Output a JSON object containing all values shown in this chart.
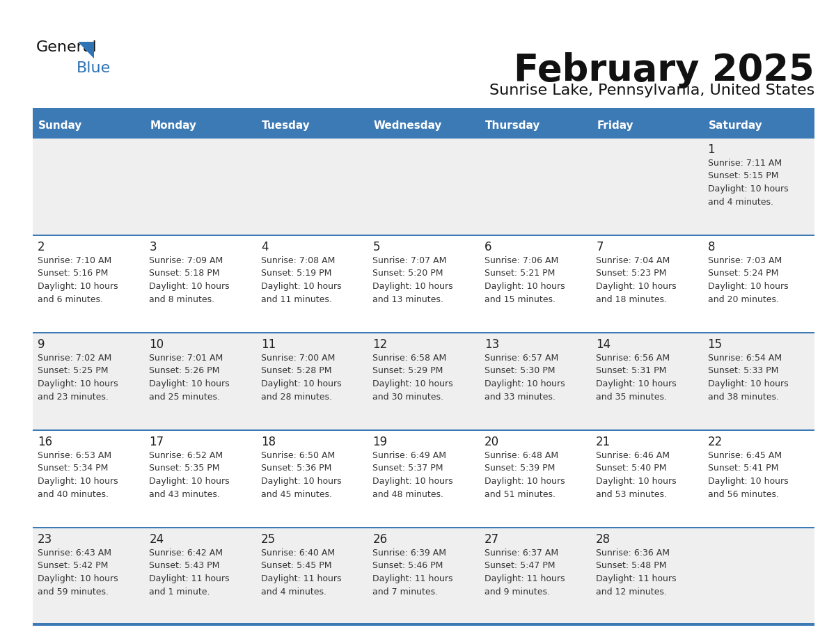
{
  "title": "February 2025",
  "subtitle": "Sunrise Lake, Pennsylvania, United States",
  "days_of_week": [
    "Sunday",
    "Monday",
    "Tuesday",
    "Wednesday",
    "Thursday",
    "Friday",
    "Saturday"
  ],
  "header_bg": "#3C7AB5",
  "header_text": "#FFFFFF",
  "row_bg_odd": "#EFEFEF",
  "row_bg_even": "#FFFFFF",
  "separator_color": "#3C7AB5",
  "day_num_color": "#222222",
  "cell_text_color": "#333333",
  "title_color": "#111111",
  "subtitle_color": "#111111",
  "logo_general_color": "#111111",
  "logo_blue_color": "#2E74B5",
  "weeks": [
    [
      null,
      null,
      null,
      null,
      null,
      null,
      1
    ],
    [
      2,
      3,
      4,
      5,
      6,
      7,
      8
    ],
    [
      9,
      10,
      11,
      12,
      13,
      14,
      15
    ],
    [
      16,
      17,
      18,
      19,
      20,
      21,
      22
    ],
    [
      23,
      24,
      25,
      26,
      27,
      28,
      null
    ]
  ],
  "cell_data": {
    "1": {
      "sunrise": "7:11 AM",
      "sunset": "5:15 PM",
      "daylight_line1": "Daylight: 10 hours",
      "daylight_line2": "and 4 minutes."
    },
    "2": {
      "sunrise": "7:10 AM",
      "sunset": "5:16 PM",
      "daylight_line1": "Daylight: 10 hours",
      "daylight_line2": "and 6 minutes."
    },
    "3": {
      "sunrise": "7:09 AM",
      "sunset": "5:18 PM",
      "daylight_line1": "Daylight: 10 hours",
      "daylight_line2": "and 8 minutes."
    },
    "4": {
      "sunrise": "7:08 AM",
      "sunset": "5:19 PM",
      "daylight_line1": "Daylight: 10 hours",
      "daylight_line2": "and 11 minutes."
    },
    "5": {
      "sunrise": "7:07 AM",
      "sunset": "5:20 PM",
      "daylight_line1": "Daylight: 10 hours",
      "daylight_line2": "and 13 minutes."
    },
    "6": {
      "sunrise": "7:06 AM",
      "sunset": "5:21 PM",
      "daylight_line1": "Daylight: 10 hours",
      "daylight_line2": "and 15 minutes."
    },
    "7": {
      "sunrise": "7:04 AM",
      "sunset": "5:23 PM",
      "daylight_line1": "Daylight: 10 hours",
      "daylight_line2": "and 18 minutes."
    },
    "8": {
      "sunrise": "7:03 AM",
      "sunset": "5:24 PM",
      "daylight_line1": "Daylight: 10 hours",
      "daylight_line2": "and 20 minutes."
    },
    "9": {
      "sunrise": "7:02 AM",
      "sunset": "5:25 PM",
      "daylight_line1": "Daylight: 10 hours",
      "daylight_line2": "and 23 minutes."
    },
    "10": {
      "sunrise": "7:01 AM",
      "sunset": "5:26 PM",
      "daylight_line1": "Daylight: 10 hours",
      "daylight_line2": "and 25 minutes."
    },
    "11": {
      "sunrise": "7:00 AM",
      "sunset": "5:28 PM",
      "daylight_line1": "Daylight: 10 hours",
      "daylight_line2": "and 28 minutes."
    },
    "12": {
      "sunrise": "6:58 AM",
      "sunset": "5:29 PM",
      "daylight_line1": "Daylight: 10 hours",
      "daylight_line2": "and 30 minutes."
    },
    "13": {
      "sunrise": "6:57 AM",
      "sunset": "5:30 PM",
      "daylight_line1": "Daylight: 10 hours",
      "daylight_line2": "and 33 minutes."
    },
    "14": {
      "sunrise": "6:56 AM",
      "sunset": "5:31 PM",
      "daylight_line1": "Daylight: 10 hours",
      "daylight_line2": "and 35 minutes."
    },
    "15": {
      "sunrise": "6:54 AM",
      "sunset": "5:33 PM",
      "daylight_line1": "Daylight: 10 hours",
      "daylight_line2": "and 38 minutes."
    },
    "16": {
      "sunrise": "6:53 AM",
      "sunset": "5:34 PM",
      "daylight_line1": "Daylight: 10 hours",
      "daylight_line2": "and 40 minutes."
    },
    "17": {
      "sunrise": "6:52 AM",
      "sunset": "5:35 PM",
      "daylight_line1": "Daylight: 10 hours",
      "daylight_line2": "and 43 minutes."
    },
    "18": {
      "sunrise": "6:50 AM",
      "sunset": "5:36 PM",
      "daylight_line1": "Daylight: 10 hours",
      "daylight_line2": "and 45 minutes."
    },
    "19": {
      "sunrise": "6:49 AM",
      "sunset": "5:37 PM",
      "daylight_line1": "Daylight: 10 hours",
      "daylight_line2": "and 48 minutes."
    },
    "20": {
      "sunrise": "6:48 AM",
      "sunset": "5:39 PM",
      "daylight_line1": "Daylight: 10 hours",
      "daylight_line2": "and 51 minutes."
    },
    "21": {
      "sunrise": "6:46 AM",
      "sunset": "5:40 PM",
      "daylight_line1": "Daylight: 10 hours",
      "daylight_line2": "and 53 minutes."
    },
    "22": {
      "sunrise": "6:45 AM",
      "sunset": "5:41 PM",
      "daylight_line1": "Daylight: 10 hours",
      "daylight_line2": "and 56 minutes."
    },
    "23": {
      "sunrise": "6:43 AM",
      "sunset": "5:42 PM",
      "daylight_line1": "Daylight: 10 hours",
      "daylight_line2": "and 59 minutes."
    },
    "24": {
      "sunrise": "6:42 AM",
      "sunset": "5:43 PM",
      "daylight_line1": "Daylight: 11 hours",
      "daylight_line2": "and 1 minute."
    },
    "25": {
      "sunrise": "6:40 AM",
      "sunset": "5:45 PM",
      "daylight_line1": "Daylight: 11 hours",
      "daylight_line2": "and 4 minutes."
    },
    "26": {
      "sunrise": "6:39 AM",
      "sunset": "5:46 PM",
      "daylight_line1": "Daylight: 11 hours",
      "daylight_line2": "and 7 minutes."
    },
    "27": {
      "sunrise": "6:37 AM",
      "sunset": "5:47 PM",
      "daylight_line1": "Daylight: 11 hours",
      "daylight_line2": "and 9 minutes."
    },
    "28": {
      "sunrise": "6:36 AM",
      "sunset": "5:48 PM",
      "daylight_line1": "Daylight: 11 hours",
      "daylight_line2": "and 12 minutes."
    }
  },
  "fig_width": 11.88,
  "fig_height": 9.18,
  "dpi": 100
}
